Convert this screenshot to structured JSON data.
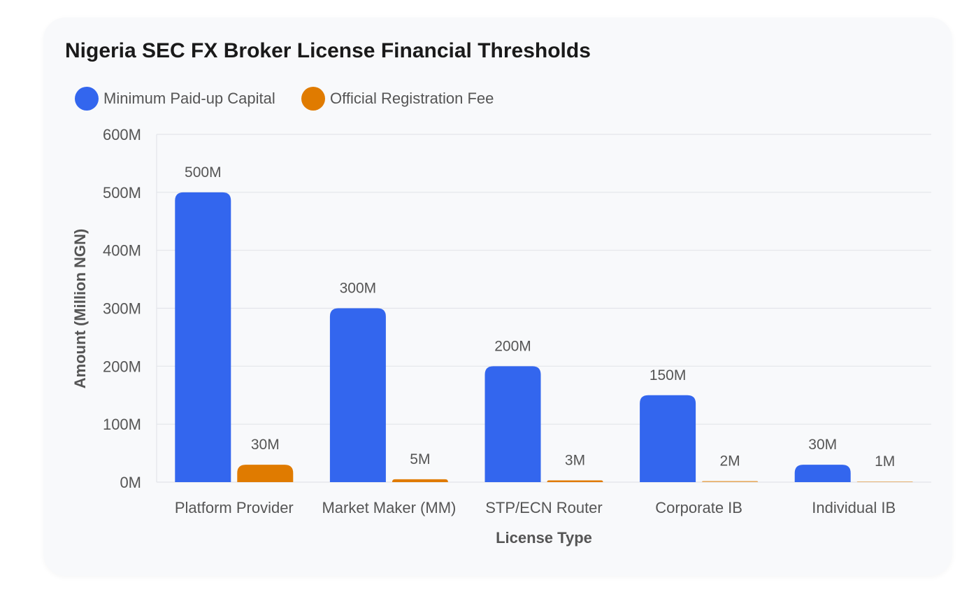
{
  "chart_data": {
    "type": "bar",
    "title": "Nigeria SEC FX Broker License Financial Thresholds",
    "xlabel": "License Type",
    "ylabel": "Amount (Million NGN)",
    "categories": [
      "Platform Provider",
      "Market Maker (MM)",
      "STP/ECN Router",
      "Corporate IB",
      "Individual IB"
    ],
    "series": [
      {
        "name": "Minimum Paid-up Capital",
        "color": "#3366ee",
        "values": [
          500,
          300,
          200,
          150,
          30
        ],
        "labels": [
          "500M",
          "300M",
          "200M",
          "150M",
          "30M"
        ]
      },
      {
        "name": "Official Registration Fee",
        "color": "#e07b00",
        "values": [
          30,
          5,
          3,
          2,
          1
        ],
        "labels": [
          "30M",
          "5M",
          "3M",
          "2M",
          "1M"
        ]
      }
    ],
    "ylim": [
      0,
      600
    ],
    "yticks": [
      0,
      100,
      200,
      300,
      400,
      500,
      600
    ],
    "ytick_labels": [
      "0M",
      "100M",
      "200M",
      "300M",
      "400M",
      "500M",
      "600M"
    ],
    "grid": true,
    "legend": "top-left"
  }
}
